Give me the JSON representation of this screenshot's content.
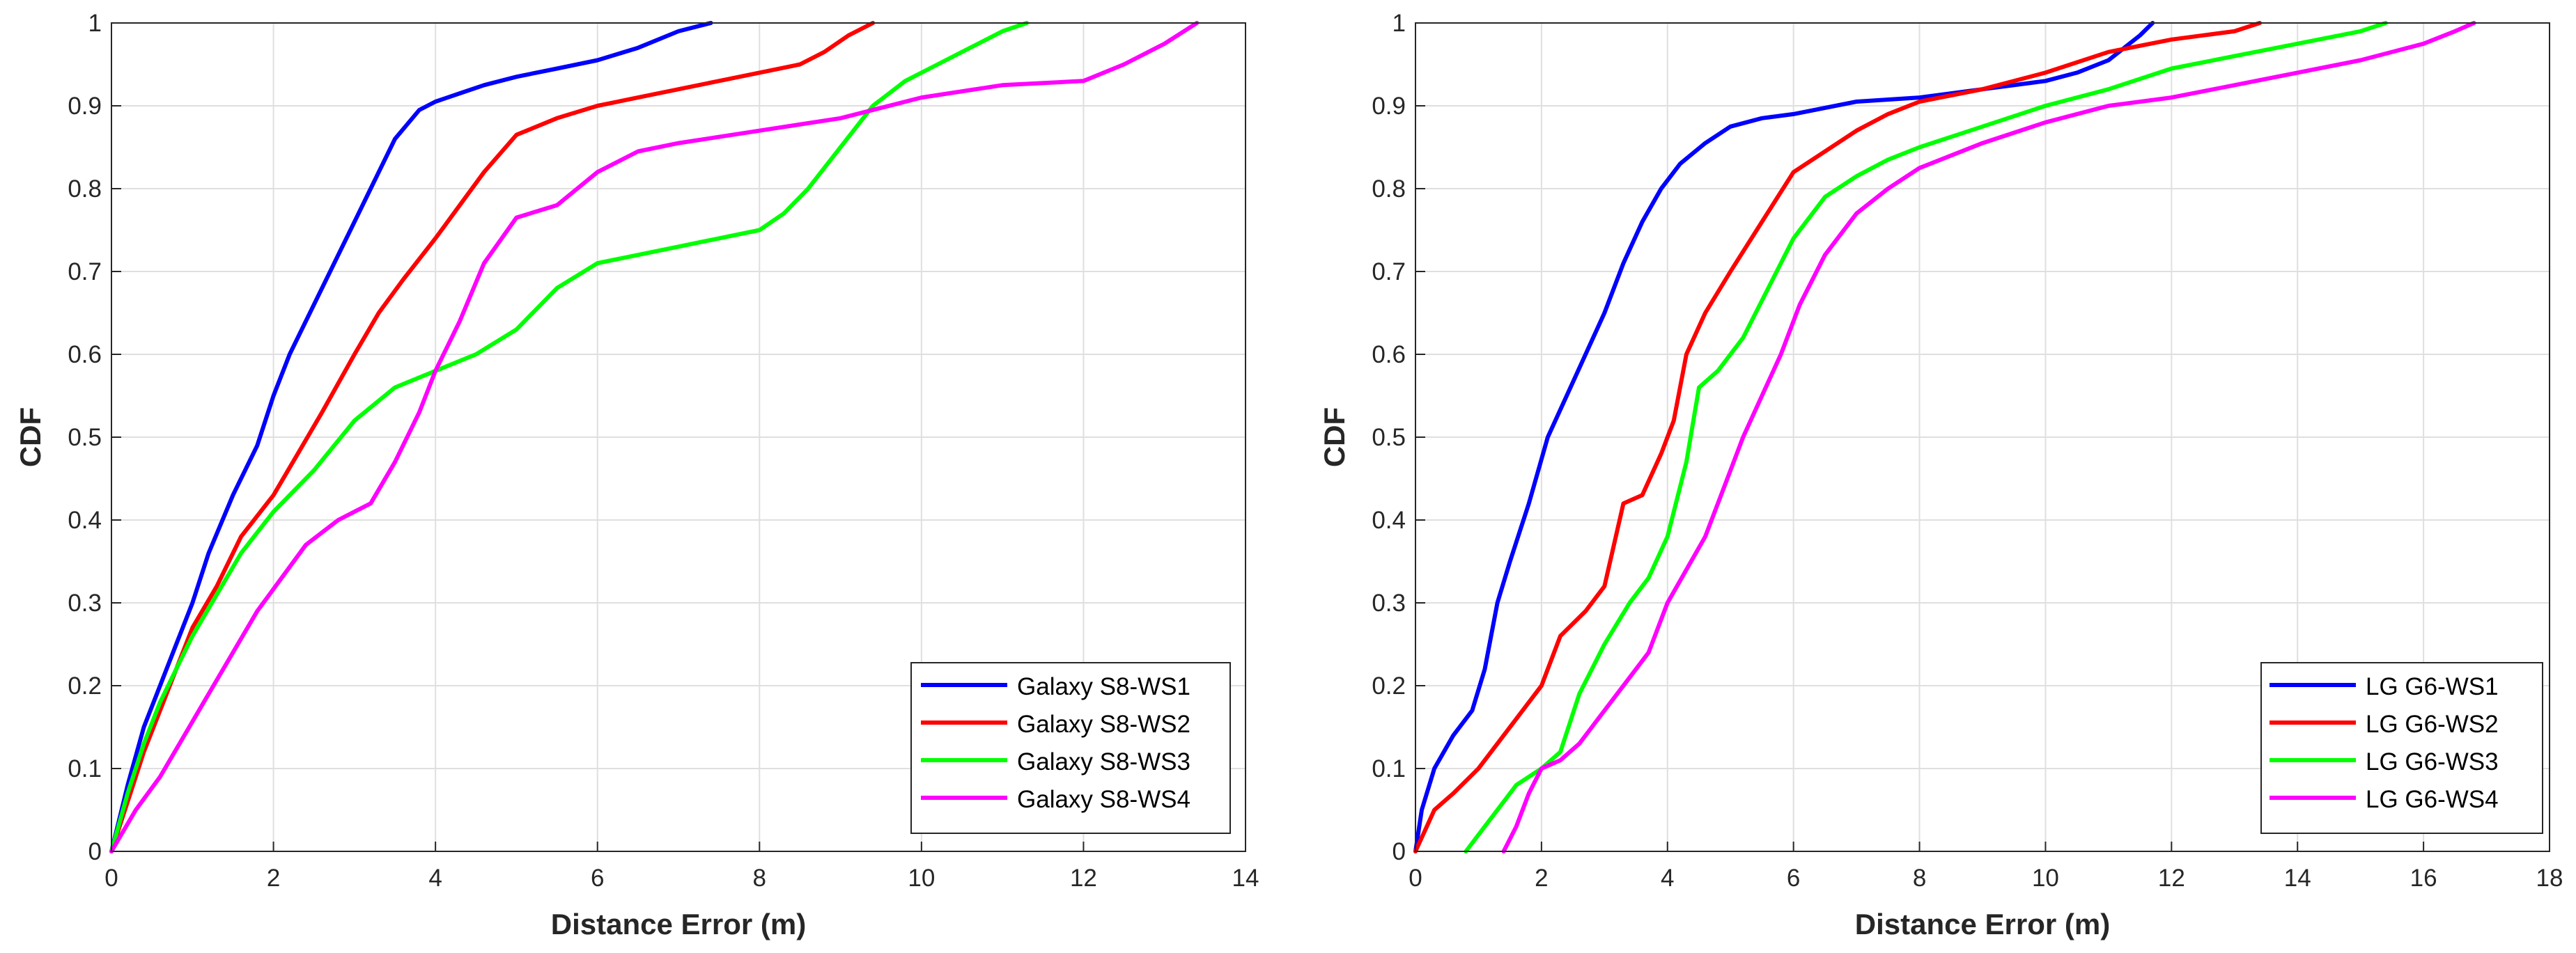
{
  "chart_data": [
    {
      "type": "line",
      "title": "",
      "xlabel": "Distance Error (m)",
      "ylabel": "CDF",
      "xlim": [
        0,
        14
      ],
      "ylim": [
        0,
        1
      ],
      "xticks": [
        0,
        2,
        4,
        6,
        8,
        10,
        12,
        14
      ],
      "yticks": [
        0,
        0.1,
        0.2,
        0.3,
        0.4,
        0.5,
        0.6,
        0.7,
        0.8,
        0.9,
        1
      ],
      "grid": true,
      "legend_position": "bottom-right",
      "series": [
        {
          "name": "Galaxy S8-WS1",
          "color": "#0000ff",
          "x": [
            0,
            0.2,
            0.4,
            0.6,
            0.8,
            1.0,
            1.2,
            1.5,
            1.8,
            2.0,
            2.2,
            2.5,
            2.8,
            3.0,
            3.2,
            3.5,
            3.8,
            4.0,
            4.3,
            4.6,
            5.0,
            5.5,
            6.0,
            6.5,
            7.0,
            7.4
          ],
          "y": [
            0,
            0.08,
            0.15,
            0.2,
            0.25,
            0.3,
            0.36,
            0.43,
            0.49,
            0.55,
            0.6,
            0.66,
            0.72,
            0.76,
            0.8,
            0.86,
            0.895,
            0.905,
            0.915,
            0.925,
            0.935,
            0.945,
            0.955,
            0.97,
            0.99,
            1.0
          ]
        },
        {
          "name": "Galaxy S8-WS2",
          "color": "#ff0000",
          "x": [
            0,
            0.2,
            0.4,
            0.6,
            0.8,
            1.0,
            1.3,
            1.6,
            2.0,
            2.3,
            2.6,
            3.0,
            3.3,
            3.6,
            4.0,
            4.3,
            4.6,
            5.0,
            5.5,
            6.0,
            6.5,
            7.0,
            7.5,
            8.0,
            8.5,
            8.8,
            9.1,
            9.4
          ],
          "y": [
            0,
            0.06,
            0.12,
            0.17,
            0.22,
            0.27,
            0.32,
            0.38,
            0.43,
            0.48,
            0.53,
            0.6,
            0.65,
            0.69,
            0.74,
            0.78,
            0.82,
            0.865,
            0.885,
            0.9,
            0.91,
            0.92,
            0.93,
            0.94,
            0.95,
            0.965,
            0.985,
            1.0
          ]
        },
        {
          "name": "Galaxy S8-WS3",
          "color": "#00ff00",
          "x": [
            0,
            0.2,
            0.4,
            0.6,
            0.8,
            1.0,
            1.3,
            1.6,
            2.0,
            2.5,
            3.0,
            3.5,
            4.0,
            4.5,
            5.0,
            5.5,
            6.0,
            6.5,
            7.0,
            7.5,
            8.0,
            8.3,
            8.6,
            9.0,
            9.4,
            9.8,
            10.2,
            10.6,
            11.0,
            11.3
          ],
          "y": [
            0,
            0.07,
            0.13,
            0.18,
            0.22,
            0.26,
            0.31,
            0.36,
            0.41,
            0.46,
            0.52,
            0.56,
            0.58,
            0.6,
            0.63,
            0.68,
            0.71,
            0.72,
            0.73,
            0.74,
            0.75,
            0.77,
            0.8,
            0.85,
            0.9,
            0.93,
            0.95,
            0.97,
            0.99,
            1.0
          ]
        },
        {
          "name": "Galaxy S8-WS4",
          "color": "#ff00ff",
          "x": [
            0,
            0.3,
            0.6,
            0.9,
            1.2,
            1.5,
            1.8,
            2.1,
            2.4,
            2.8,
            3.2,
            3.5,
            3.8,
            4.0,
            4.3,
            4.6,
            5.0,
            5.5,
            6.0,
            6.5,
            7.0,
            8.0,
            9.0,
            10.0,
            11.0,
            12.0,
            12.5,
            13.0,
            13.4
          ],
          "y": [
            0,
            0.05,
            0.09,
            0.14,
            0.19,
            0.24,
            0.29,
            0.33,
            0.37,
            0.4,
            0.42,
            0.47,
            0.53,
            0.58,
            0.64,
            0.71,
            0.765,
            0.78,
            0.82,
            0.845,
            0.855,
            0.87,
            0.885,
            0.91,
            0.925,
            0.93,
            0.95,
            0.975,
            1.0
          ]
        }
      ]
    },
    {
      "type": "line",
      "title": "",
      "xlabel": "Distance Error (m)",
      "ylabel": "CDF",
      "xlim": [
        0,
        18
      ],
      "ylim": [
        0,
        1
      ],
      "xticks": [
        0,
        2,
        4,
        6,
        8,
        10,
        12,
        14,
        16,
        18
      ],
      "yticks": [
        0,
        0.1,
        0.2,
        0.3,
        0.4,
        0.5,
        0.6,
        0.7,
        0.8,
        0.9,
        1
      ],
      "grid": true,
      "legend_position": "bottom-right",
      "series": [
        {
          "name": "LG G6-WS1",
          "color": "#0000ff",
          "x": [
            0,
            0.1,
            0.3,
            0.6,
            0.9,
            1.1,
            1.3,
            1.5,
            1.8,
            2.1,
            2.4,
            2.7,
            3.0,
            3.3,
            3.6,
            3.9,
            4.2,
            4.6,
            5.0,
            5.5,
            6.0,
            7.0,
            8.0,
            9.0,
            10.0,
            10.5,
            11.0,
            11.5,
            11.7
          ],
          "y": [
            0,
            0.05,
            0.1,
            0.14,
            0.17,
            0.22,
            0.3,
            0.35,
            0.42,
            0.5,
            0.55,
            0.6,
            0.65,
            0.71,
            0.76,
            0.8,
            0.83,
            0.855,
            0.875,
            0.885,
            0.89,
            0.905,
            0.91,
            0.92,
            0.93,
            0.94,
            0.955,
            0.985,
            1.0
          ]
        },
        {
          "name": "LG G6-WS2",
          "color": "#ff0000",
          "x": [
            0,
            0.3,
            0.6,
            1.0,
            1.5,
            2.0,
            2.3,
            2.7,
            3.0,
            3.3,
            3.6,
            3.9,
            4.1,
            4.3,
            4.6,
            5.0,
            5.5,
            6.0,
            6.5,
            7.0,
            7.5,
            8.0,
            9.0,
            10.0,
            11.0,
            12.0,
            12.5,
            13.0,
            13.4
          ],
          "y": [
            0,
            0.05,
            0.07,
            0.1,
            0.15,
            0.2,
            0.26,
            0.29,
            0.32,
            0.42,
            0.43,
            0.48,
            0.52,
            0.6,
            0.65,
            0.7,
            0.76,
            0.82,
            0.845,
            0.87,
            0.89,
            0.905,
            0.92,
            0.94,
            0.965,
            0.98,
            0.985,
            0.99,
            1.0
          ]
        },
        {
          "name": "LG G6-WS3",
          "color": "#00ff00",
          "x": [
            0.8,
            1.0,
            1.3,
            1.6,
            2.0,
            2.3,
            2.6,
            3.0,
            3.4,
            3.7,
            4.0,
            4.3,
            4.5,
            4.8,
            5.2,
            5.6,
            6.0,
            6.5,
            7.0,
            7.5,
            8.0,
            9.0,
            10.0,
            11.0,
            12.0,
            13.0,
            14.0,
            15.0,
            15.4
          ],
          "y": [
            0,
            0.02,
            0.05,
            0.08,
            0.1,
            0.12,
            0.19,
            0.25,
            0.3,
            0.33,
            0.38,
            0.47,
            0.56,
            0.58,
            0.62,
            0.68,
            0.74,
            0.79,
            0.815,
            0.835,
            0.85,
            0.875,
            0.9,
            0.92,
            0.945,
            0.96,
            0.975,
            0.99,
            1.0
          ]
        },
        {
          "name": "LG G6-WS4",
          "color": "#ff00ff",
          "x": [
            1.4,
            1.6,
            1.8,
            2.0,
            2.3,
            2.6,
            3.0,
            3.3,
            3.7,
            4.0,
            4.3,
            4.6,
            4.9,
            5.2,
            5.5,
            5.8,
            6.1,
            6.5,
            7.0,
            7.5,
            8.0,
            9.0,
            10.0,
            11.0,
            12.0,
            13.0,
            14.0,
            15.0,
            16.0,
            16.5,
            16.8
          ],
          "y": [
            0,
            0.03,
            0.07,
            0.1,
            0.11,
            0.13,
            0.17,
            0.2,
            0.24,
            0.3,
            0.34,
            0.38,
            0.44,
            0.5,
            0.55,
            0.6,
            0.66,
            0.72,
            0.77,
            0.8,
            0.825,
            0.855,
            0.88,
            0.9,
            0.91,
            0.925,
            0.94,
            0.955,
            0.975,
            0.99,
            1.0
          ]
        }
      ]
    }
  ]
}
